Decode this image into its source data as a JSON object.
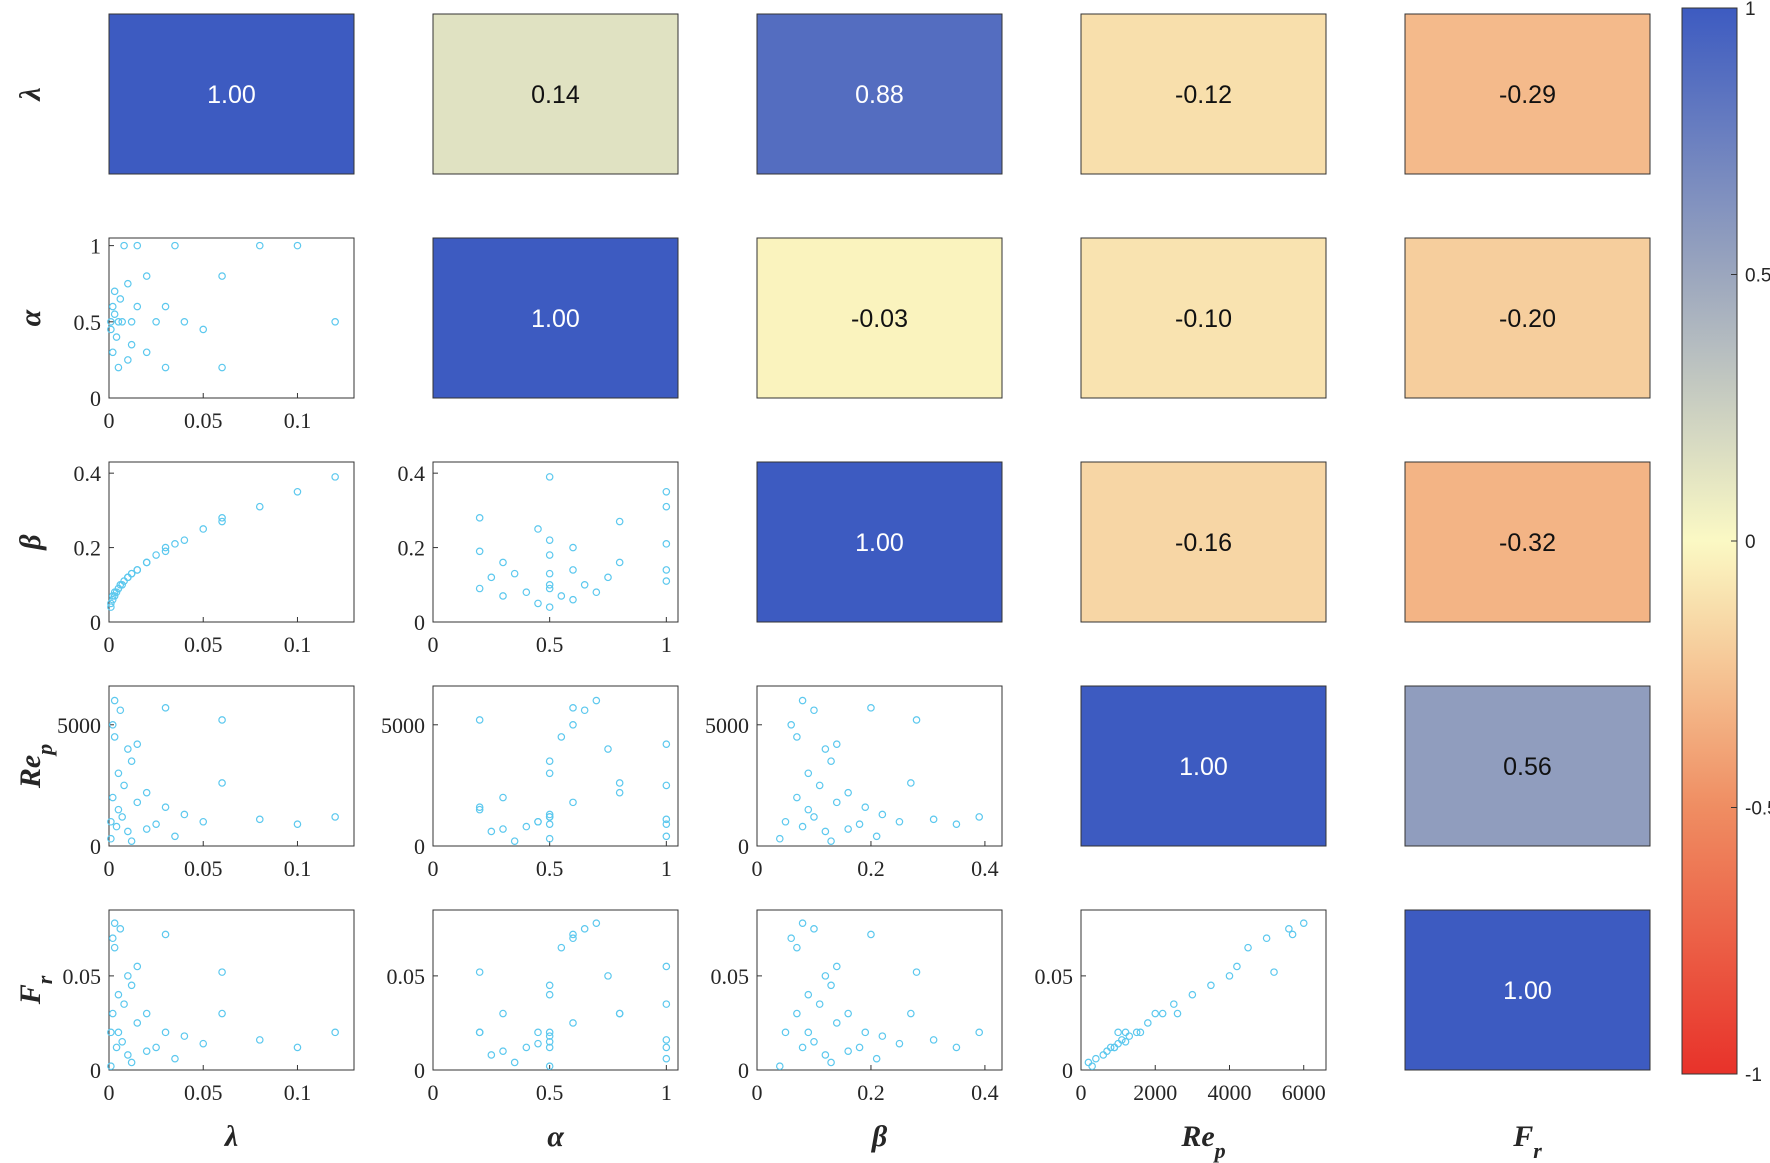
{
  "chart_data": {
    "type": "correlation-matrix",
    "variables": [
      {
        "key": "lambda",
        "symbol": "λ",
        "sub": ""
      },
      {
        "key": "alpha",
        "symbol": "α",
        "sub": ""
      },
      {
        "key": "beta",
        "symbol": "β",
        "sub": ""
      },
      {
        "key": "Rep",
        "symbol": "Re",
        "sub": "p"
      },
      {
        "key": "Fr",
        "symbol": "F",
        "sub": "r"
      }
    ],
    "upper_triangle": "pearson correlation heatmap",
    "lower_triangle": "scatter",
    "correlation": [
      [
        1.0,
        0.14,
        0.88,
        -0.12,
        -0.29
      ],
      [
        0.14,
        1.0,
        -0.03,
        -0.1,
        -0.2
      ],
      [
        0.88,
        -0.03,
        1.0,
        -0.16,
        -0.32
      ],
      [
        -0.12,
        -0.1,
        -0.16,
        1.0,
        0.56
      ],
      [
        -0.29,
        -0.2,
        -0.32,
        0.56,
        1.0
      ]
    ],
    "correlation_labels": [
      [
        "1.00",
        "0.14",
        "0.88",
        "-0.12",
        "-0.29"
      ],
      [
        "0.14",
        "1.00",
        "-0.03",
        "-0.10",
        "-0.20"
      ],
      [
        "0.88",
        "-0.03",
        "1.00",
        "-0.16",
        "-0.32"
      ],
      [
        "-0.12",
        "-0.10",
        "-0.16",
        "1.00",
        "0.56"
      ],
      [
        "-0.29",
        "-0.20",
        "-0.32",
        "0.56",
        "1.00"
      ]
    ],
    "axes": {
      "lambda": {
        "range": [
          0,
          0.13
        ],
        "ticks": [
          0,
          0.05,
          0.1
        ],
        "tick_labels": [
          "0",
          "0.05",
          "0.1"
        ]
      },
      "alpha": {
        "range": [
          0,
          1.05
        ],
        "ticks": [
          0,
          0.5,
          1
        ],
        "tick_labels": [
          "0",
          "0.5",
          "1"
        ]
      },
      "beta": {
        "range": [
          0,
          0.43
        ],
        "ticks": [
          0,
          0.2,
          0.4
        ],
        "tick_labels": [
          "0",
          "0.2",
          "0.4"
        ]
      },
      "Rep": {
        "range": [
          0,
          6600
        ],
        "ticks": [
          0,
          2000,
          4000,
          6000
        ],
        "tick_labels": [
          "0",
          "2000",
          "4000",
          "6000"
        ],
        "y_ticks": [
          0,
          5000
        ],
        "y_tick_labels": [
          "0",
          "5000"
        ]
      },
      "Fr": {
        "range": [
          0,
          0.085
        ],
        "ticks": [
          0,
          0.05
        ],
        "tick_labels": [
          "0",
          "0.05"
        ]
      }
    },
    "colorbar": {
      "range": [
        -1,
        1
      ],
      "ticks": [
        1,
        0.5,
        0,
        -0.5,
        -1
      ],
      "tick_labels": [
        "1",
        "0.5",
        "0",
        "-0.5",
        "-1"
      ],
      "colors": {
        "-1": "#e8322a",
        "-0.5": "#ef8d62",
        "0": "#fbf9c4",
        "0.5": "#9ba6be",
        "1": "#3d5bc1"
      }
    },
    "point_color": "#5cc8ee",
    "samples": {
      "lambda": [
        0.001,
        0.001,
        0.002,
        0.002,
        0.003,
        0.003,
        0.004,
        0.005,
        0.005,
        0.006,
        0.007,
        0.008,
        0.01,
        0.01,
        0.012,
        0.012,
        0.015,
        0.015,
        0.02,
        0.02,
        0.025,
        0.03,
        0.03,
        0.035,
        0.04,
        0.05,
        0.06,
        0.06,
        0.08,
        0.1,
        0.12
      ],
      "alpha": [
        0.5,
        0.45,
        0.6,
        0.3,
        0.55,
        0.7,
        0.4,
        0.5,
        0.2,
        0.65,
        0.5,
        1.0,
        0.25,
        0.75,
        0.5,
        0.35,
        0.6,
        1.0,
        0.3,
        0.8,
        0.5,
        0.2,
        0.6,
        1.0,
        0.5,
        0.45,
        0.8,
        0.2,
        1.0,
        1.0,
        0.5
      ],
      "beta": [
        0.04,
        0.05,
        0.06,
        0.07,
        0.07,
        0.08,
        0.08,
        0.09,
        0.09,
        0.1,
        0.1,
        0.11,
        0.12,
        0.12,
        0.13,
        0.13,
        0.14,
        0.14,
        0.16,
        0.16,
        0.18,
        0.19,
        0.2,
        0.21,
        0.22,
        0.25,
        0.27,
        0.28,
        0.31,
        0.35,
        0.39
      ],
      "Rep": [
        300,
        1000,
        5000,
        2000,
        4500,
        6000,
        800,
        3000,
        1500,
        5600,
        1200,
        2500,
        600,
        4000,
        3500,
        200,
        1800,
        4200,
        700,
        2200,
        900,
        1600,
        5700,
        400,
        1300,
        1000,
        2600,
        5200,
        1100,
        900,
        1200
      ],
      "Fr": [
        0.002,
        0.02,
        0.07,
        0.03,
        0.065,
        0.078,
        0.012,
        0.04,
        0.02,
        0.075,
        0.015,
        0.035,
        0.008,
        0.05,
        0.045,
        0.004,
        0.025,
        0.055,
        0.01,
        0.03,
        0.012,
        0.02,
        0.072,
        0.006,
        0.018,
        0.014,
        0.03,
        0.052,
        0.016,
        0.012,
        0.02
      ]
    }
  }
}
